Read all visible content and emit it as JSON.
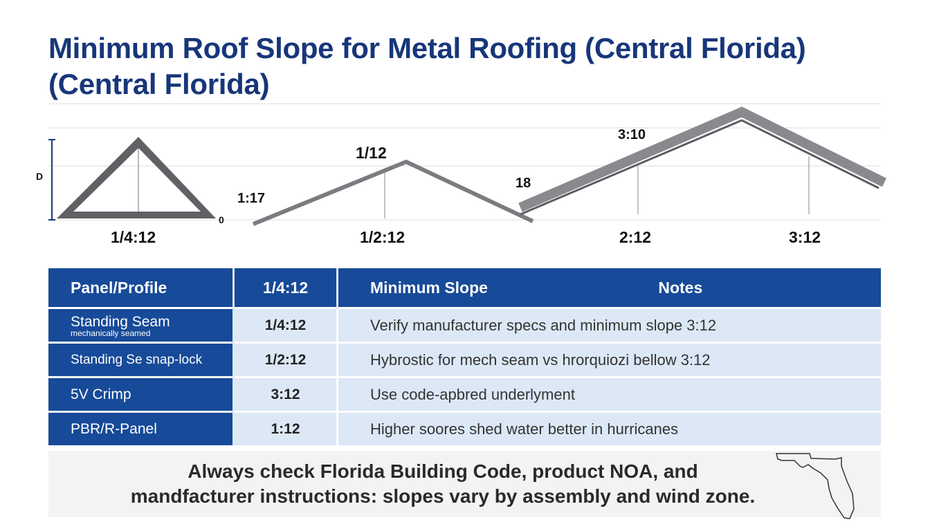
{
  "title": "Minimum Roof Slope for Metal Roofing (Central Florida) (Central Florida)",
  "diagram": {
    "labels": {
      "side_height": "D",
      "base_end": "0",
      "triangle": "1/4:12",
      "peak1_top": "1/12",
      "peak1_left": "1:17",
      "peak1_bottom": "1/2:12",
      "panel_left": "18",
      "panel_top": "3:10",
      "panel_mid": "2:12",
      "panel_right": "3:12"
    },
    "colors": {
      "roof": "#6b6d70",
      "measure": "#1a3a7a"
    }
  },
  "table": {
    "headers": [
      "Panel/Profile",
      "1/4:12",
      "Minimum Slope",
      "Notes"
    ],
    "rows": [
      {
        "profile": "Standing Seam",
        "sub": "mechanically seamed",
        "slope": "1/4:12",
        "notes": "Verify manufacturer specs and minimum slope 3:12"
      },
      {
        "profile": "Standing Se snap-lock",
        "sub": "",
        "slope": "1/2:12",
        "notes": "Hybrostic for mech seam vs hrorquiozi bellow 3:12"
      },
      {
        "profile": "5V Crimp",
        "sub": "",
        "slope": "3:12",
        "notes": "Use code-apbred underlyment"
      },
      {
        "profile": "PBR/R-Panel",
        "sub": "",
        "slope": "1:12",
        "notes": "Higher soores shed water better in hurricanes"
      }
    ]
  },
  "footer": {
    "line1": "Always check Florida Building Code, product NOA, and",
    "line2": "mandfacturer instructions: slopes vary by assembly and wind zone.",
    "icon": "florida-map-icon"
  },
  "colors": {
    "title": "#17367a",
    "header": "#174a98",
    "cell": "#dce8f6",
    "footer_bg": "#f2f3f5"
  }
}
